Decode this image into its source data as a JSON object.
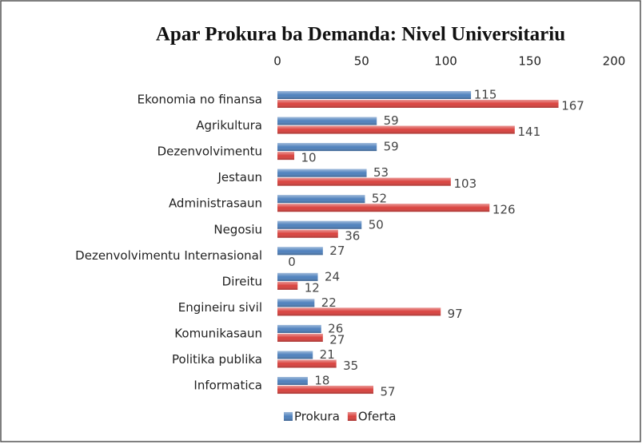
{
  "chart_data": {
    "type": "hbar",
    "title": "Apar Prokura ba Demanda: Nivel Universitariu",
    "categories": [
      "Ekonomia no finansa",
      "Agrikultura",
      "Dezenvolvimentu",
      "Jestaun",
      "Administrasaun",
      "Negosiu",
      "Dezenvolvimentu Internasional",
      "Direitu",
      "Engineiru sivil",
      "Komunikasaun",
      "Politika publika",
      "Informatica"
    ],
    "series": [
      {
        "name": "Prokura",
        "color": "#4f81bd",
        "values": [
          115,
          59,
          59,
          53,
          52,
          50,
          27,
          24,
          22,
          26,
          21,
          18
        ]
      },
      {
        "name": "Oferta",
        "color": "#d9423e",
        "values": [
          167,
          141,
          10,
          103,
          126,
          36,
          0,
          12,
          97,
          27,
          35,
          57
        ]
      }
    ],
    "xlim": [
      0,
      200
    ],
    "xticks": [
      0,
      50,
      100,
      150,
      200
    ],
    "grid": false,
    "legend": "bottom"
  }
}
